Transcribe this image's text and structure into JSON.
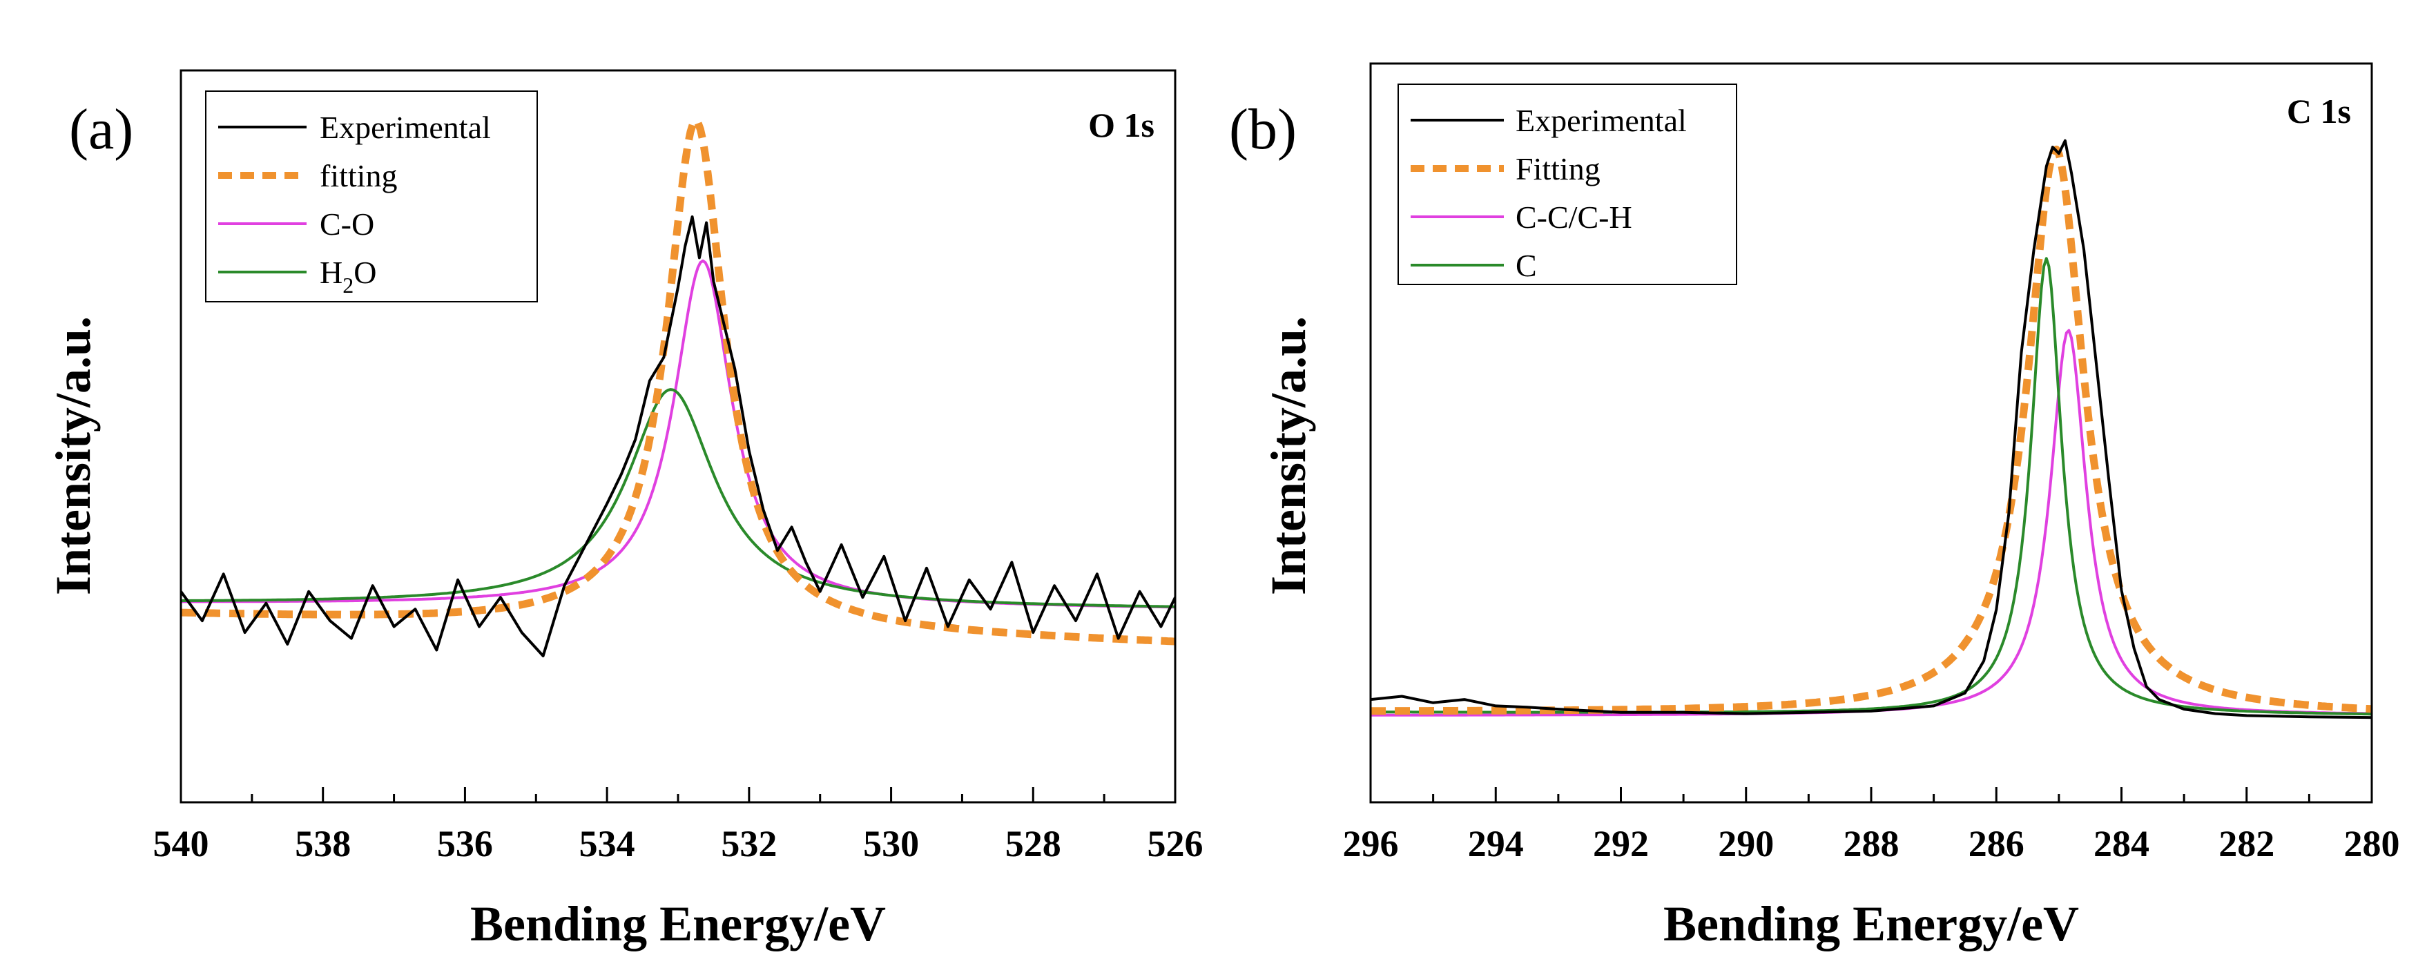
{
  "chart_data": [
    {
      "type": "line",
      "panel": "(a)",
      "element": "O 1s",
      "xlabel": "Bending Energy/eV",
      "ylabel": "Intensity/a.u.",
      "xlim": [
        540,
        526
      ],
      "ylim": [
        0,
        1.25
      ],
      "x_reversed": true,
      "xticks": [
        540,
        538,
        536,
        534,
        532,
        530,
        528,
        526
      ],
      "yticks_shown": false,
      "legend_position": "top-left",
      "legend": [
        {
          "label": "Experimental",
          "color": "#000000",
          "style": "solid"
        },
        {
          "label": "fitting",
          "color": "#f0922e",
          "style": "dashed"
        },
        {
          "label": "C-O",
          "color": "#e040e0",
          "style": "solid"
        },
        {
          "label": "H",
          "sub": "2",
          "after": "O",
          "color": "#2a8a2a",
          "style": "solid"
        }
      ],
      "series": [
        {
          "name": "C-O",
          "color": "#e040e0",
          "model": "lorentzian",
          "center": 532.65,
          "amplitude": 0.59,
          "width": 0.5,
          "baseline": [
            0.34,
            0.33
          ],
          "x_range": [
            540,
            526
          ]
        },
        {
          "name": "H2O",
          "color": "#2a8a2a",
          "model": "lorentzian",
          "center": 533.1,
          "amplitude": 0.37,
          "width": 0.75,
          "baseline": [
            0.34,
            0.33
          ],
          "x_range": [
            540,
            526
          ]
        },
        {
          "name": "fitting",
          "color": "#f0922e",
          "style": "dashed",
          "model": "lorentzian",
          "center": 532.75,
          "amplitude": 0.87,
          "width": 0.5,
          "baseline": [
            0.32,
            0.27
          ],
          "x_range": [
            540,
            526
          ]
        },
        {
          "name": "Experimental",
          "color": "#000000",
          "x": [
            540.0,
            539.7,
            539.4,
            539.1,
            538.8,
            538.5,
            538.2,
            537.9,
            537.6,
            537.3,
            537.0,
            536.7,
            536.4,
            536.1,
            535.8,
            535.5,
            535.2,
            534.9,
            534.6,
            534.3,
            534.0,
            533.8,
            533.6,
            533.4,
            533.2,
            533.0,
            532.9,
            532.8,
            532.7,
            532.6,
            532.5,
            532.4,
            532.2,
            532.0,
            531.8,
            531.6,
            531.4,
            531.2,
            531.0,
            530.7,
            530.4,
            530.1,
            529.8,
            529.5,
            529.2,
            528.9,
            528.6,
            528.3,
            528.0,
            527.7,
            527.4,
            527.1,
            526.8,
            526.5,
            526.2,
            526.0
          ],
          "y": [
            0.36,
            0.31,
            0.39,
            0.29,
            0.34,
            0.27,
            0.36,
            0.31,
            0.28,
            0.37,
            0.3,
            0.33,
            0.26,
            0.38,
            0.3,
            0.35,
            0.29,
            0.25,
            0.37,
            0.44,
            0.51,
            0.56,
            0.62,
            0.72,
            0.76,
            0.88,
            0.95,
            1.0,
            0.93,
            0.99,
            0.89,
            0.84,
            0.74,
            0.6,
            0.5,
            0.43,
            0.47,
            0.41,
            0.36,
            0.44,
            0.35,
            0.42,
            0.31,
            0.4,
            0.3,
            0.38,
            0.33,
            0.41,
            0.29,
            0.37,
            0.31,
            0.39,
            0.28,
            0.36,
            0.3,
            0.35
          ]
        }
      ]
    },
    {
      "type": "line",
      "panel": "(b)",
      "element": "C 1s",
      "xlabel": "Bending Energy/eV",
      "ylabel": "Intensity/a.u.",
      "xlim": [
        296,
        280
      ],
      "ylim": [
        0,
        1.15
      ],
      "x_reversed": true,
      "xticks": [
        296,
        294,
        292,
        290,
        288,
        286,
        284,
        282,
        280
      ],
      "yticks_shown": false,
      "legend_position": "top-left",
      "legend": [
        {
          "label": "Experimental",
          "color": "#000000",
          "style": "solid"
        },
        {
          "label": "Fitting",
          "color": "#f0922e",
          "style": "dashed"
        },
        {
          "label": "C-C/C-H",
          "color": "#e040e0",
          "style": "solid"
        },
        {
          "label": "C",
          "color": "#2a8a2a",
          "style": "solid"
        }
      ],
      "series": [
        {
          "name": "C-C/C-H",
          "color": "#e040e0",
          "model": "lorentzian",
          "center": 284.85,
          "amplitude": 0.6,
          "width": 0.35,
          "baseline": [
            0.135,
            0.135
          ],
          "x_range": [
            296,
            280
          ]
        },
        {
          "name": "C",
          "color": "#2a8a2a",
          "model": "lorentzian",
          "center": 285.2,
          "amplitude": 0.71,
          "width": 0.3,
          "baseline": [
            0.14,
            0.135
          ],
          "x_range": [
            296,
            280
          ]
        },
        {
          "name": "Fitting",
          "color": "#f0922e",
          "style": "dashed",
          "model": "lorentzian",
          "center": 285.05,
          "amplitude": 0.88,
          "width": 0.55,
          "baseline": [
            0.14,
            0.135
          ],
          "x_range": [
            296,
            280
          ]
        },
        {
          "name": "Experimental",
          "color": "#000000",
          "x": [
            296.0,
            295.5,
            295.0,
            294.5,
            294.0,
            293.5,
            293.0,
            292.0,
            291.0,
            290.0,
            289.0,
            288.0,
            287.0,
            286.5,
            286.2,
            286.0,
            285.8,
            285.6,
            285.4,
            285.2,
            285.1,
            285.0,
            284.9,
            284.8,
            284.6,
            284.4,
            284.2,
            284.0,
            283.8,
            283.6,
            283.4,
            283.0,
            282.5,
            282.0,
            281.0,
            280.0
          ],
          "y": [
            0.16,
            0.165,
            0.155,
            0.16,
            0.15,
            0.148,
            0.145,
            0.14,
            0.14,
            0.138,
            0.14,
            0.142,
            0.15,
            0.17,
            0.22,
            0.3,
            0.45,
            0.7,
            0.86,
            0.99,
            1.02,
            1.01,
            1.03,
            0.98,
            0.86,
            0.68,
            0.5,
            0.33,
            0.24,
            0.18,
            0.16,
            0.145,
            0.138,
            0.135,
            0.133,
            0.132
          ]
        }
      ]
    }
  ]
}
